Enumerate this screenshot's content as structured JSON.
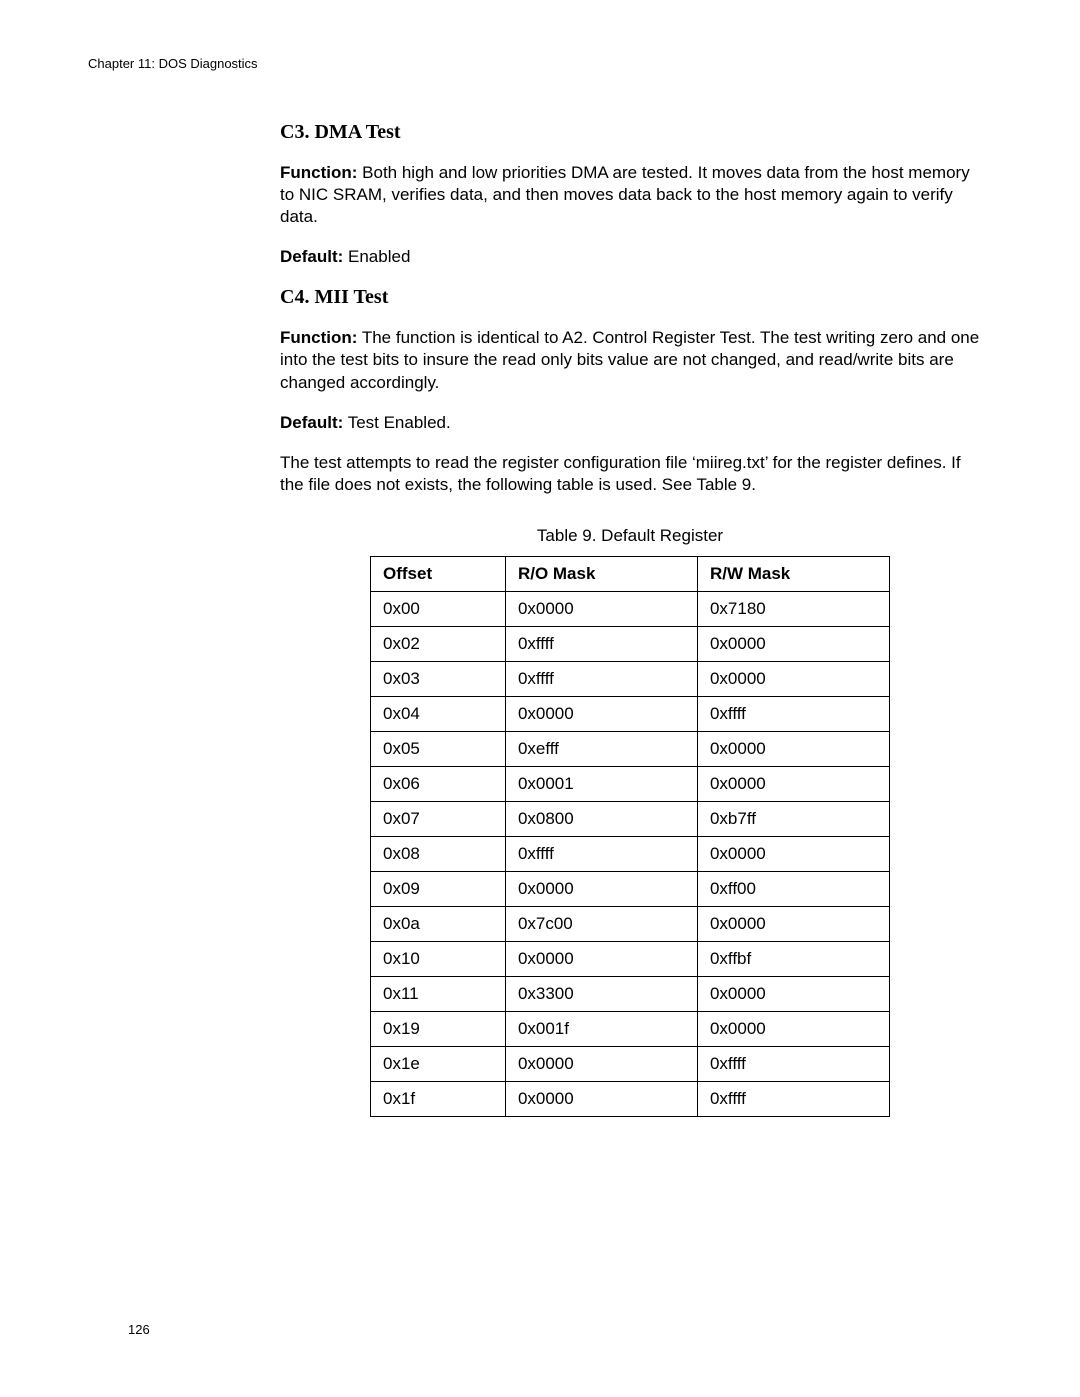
{
  "header": {
    "chapter": "Chapter 11: DOS Diagnostics"
  },
  "section_c3": {
    "heading": "C3. DMA Test",
    "function_label": "Function:",
    "function_text": " Both high and low priorities DMA are tested. It moves data from the host memory to NIC SRAM, verifies data, and then moves data back to the host memory again to verify data.",
    "default_label": "Default:",
    "default_text": " Enabled"
  },
  "section_c4": {
    "heading": "C4. MII Test",
    "function_label": "Function:",
    "function_text": " The function is identical to A2. Control Register Test. The test writing zero and one into the test bits to insure the read only bits value are not changed, and read/write bits are changed accordingly.",
    "default_label": "Default:",
    "default_text": " Test Enabled.",
    "note_text": "The test attempts to read the register configuration file ‘miireg.txt’ for the register defines. If the file does not exists, the following table is used. See Table 9."
  },
  "table": {
    "caption": "Table 9. Default Register",
    "columns": [
      "Offset",
      "R/O Mask",
      "R/W Mask"
    ],
    "rows": [
      [
        "0x00",
        "0x0000",
        "0x7180"
      ],
      [
        "0x02",
        "0xffff",
        "0x0000"
      ],
      [
        "0x03",
        "0xffff",
        "0x0000"
      ],
      [
        "0x04",
        "0x0000",
        "0xffff"
      ],
      [
        "0x05",
        "0xefff",
        "0x0000"
      ],
      [
        "0x06",
        "0x0001",
        "0x0000"
      ],
      [
        "0x07",
        "0x0800",
        "0xb7ff"
      ],
      [
        "0x08",
        "0xffff",
        "0x0000"
      ],
      [
        "0x09",
        "0x0000",
        "0xff00"
      ],
      [
        "0x0a",
        "0x7c00",
        "0x0000"
      ],
      [
        "0x10",
        "0x0000",
        "0xffbf"
      ],
      [
        "0x11",
        "0x3300",
        "0x0000"
      ],
      [
        "0x19",
        "0x001f",
        "0x0000"
      ],
      [
        "0x1e",
        "0x0000",
        "0xffff"
      ],
      [
        "0x1f",
        "0x0000",
        "0xffff"
      ]
    ],
    "col_widths": [
      "26%",
      "37%",
      "37%"
    ]
  },
  "page_number": "126"
}
